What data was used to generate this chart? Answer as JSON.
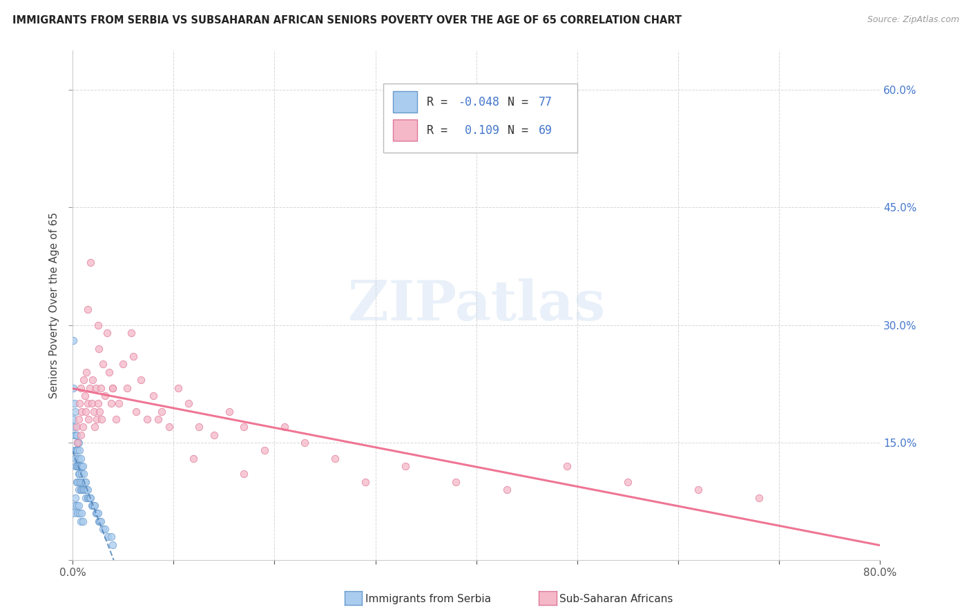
{
  "title": "IMMIGRANTS FROM SERBIA VS SUBSAHARAN AFRICAN SENIORS POVERTY OVER THE AGE OF 65 CORRELATION CHART",
  "source": "Source: ZipAtlas.com",
  "ylabel": "Seniors Poverty Over the Age of 65",
  "xlim": [
    0.0,
    0.8
  ],
  "ylim": [
    0.0,
    0.65
  ],
  "background_color": "#ffffff",
  "grid_color": "#cccccc",
  "watermark_text": "ZIPatlas",
  "legend_R1": "-0.048",
  "legend_N1": "77",
  "legend_R2": "0.109",
  "legend_N2": "69",
  "series1_color": "#aaccee",
  "series1_edge": "#6699cc",
  "series2_color": "#f5b8c8",
  "series2_edge": "#dd7799",
  "trendline1_color": "#5588bb",
  "trendline2_color": "#ee6688",
  "serbia_x": [
    0.001,
    0.001,
    0.001,
    0.002,
    0.002,
    0.002,
    0.002,
    0.003,
    0.003,
    0.003,
    0.003,
    0.003,
    0.004,
    0.004,
    0.004,
    0.004,
    0.005,
    0.005,
    0.005,
    0.005,
    0.005,
    0.006,
    0.006,
    0.006,
    0.006,
    0.006,
    0.007,
    0.007,
    0.007,
    0.007,
    0.008,
    0.008,
    0.008,
    0.008,
    0.009,
    0.009,
    0.009,
    0.01,
    0.01,
    0.01,
    0.011,
    0.011,
    0.012,
    0.012,
    0.013,
    0.013,
    0.014,
    0.015,
    0.015,
    0.016,
    0.017,
    0.018,
    0.019,
    0.02,
    0.021,
    0.022,
    0.023,
    0.024,
    0.025,
    0.026,
    0.027,
    0.028,
    0.03,
    0.032,
    0.035,
    0.038,
    0.04,
    0.001,
    0.002,
    0.003,
    0.004,
    0.005,
    0.006,
    0.007,
    0.008,
    0.009,
    0.01
  ],
  "serbia_y": [
    0.28,
    0.22,
    0.18,
    0.2,
    0.17,
    0.16,
    0.14,
    0.19,
    0.16,
    0.14,
    0.13,
    0.12,
    0.16,
    0.14,
    0.12,
    0.1,
    0.15,
    0.14,
    0.13,
    0.12,
    0.1,
    0.15,
    0.13,
    0.12,
    0.11,
    0.09,
    0.14,
    0.12,
    0.11,
    0.1,
    0.13,
    0.12,
    0.1,
    0.09,
    0.12,
    0.11,
    0.09,
    0.12,
    0.1,
    0.09,
    0.11,
    0.09,
    0.1,
    0.09,
    0.1,
    0.08,
    0.09,
    0.09,
    0.08,
    0.08,
    0.08,
    0.08,
    0.07,
    0.07,
    0.07,
    0.07,
    0.06,
    0.06,
    0.06,
    0.05,
    0.05,
    0.05,
    0.04,
    0.04,
    0.03,
    0.03,
    0.02,
    0.06,
    0.07,
    0.08,
    0.07,
    0.06,
    0.07,
    0.06,
    0.05,
    0.06,
    0.05
  ],
  "subsaharan_x": [
    0.004,
    0.005,
    0.006,
    0.007,
    0.008,
    0.009,
    0.01,
    0.011,
    0.012,
    0.013,
    0.014,
    0.015,
    0.016,
    0.017,
    0.018,
    0.019,
    0.02,
    0.021,
    0.022,
    0.023,
    0.024,
    0.025,
    0.026,
    0.027,
    0.028,
    0.029,
    0.03,
    0.032,
    0.034,
    0.036,
    0.038,
    0.04,
    0.043,
    0.046,
    0.05,
    0.054,
    0.058,
    0.063,
    0.068,
    0.074,
    0.08,
    0.088,
    0.096,
    0.105,
    0.115,
    0.125,
    0.14,
    0.155,
    0.17,
    0.19,
    0.21,
    0.23,
    0.26,
    0.29,
    0.33,
    0.38,
    0.43,
    0.49,
    0.55,
    0.62,
    0.68,
    0.008,
    0.015,
    0.025,
    0.04,
    0.06,
    0.085,
    0.12,
    0.17
  ],
  "subsaharan_y": [
    0.17,
    0.15,
    0.18,
    0.2,
    0.22,
    0.19,
    0.17,
    0.23,
    0.21,
    0.19,
    0.24,
    0.2,
    0.18,
    0.22,
    0.38,
    0.2,
    0.23,
    0.19,
    0.17,
    0.22,
    0.18,
    0.2,
    0.27,
    0.19,
    0.22,
    0.18,
    0.25,
    0.21,
    0.29,
    0.24,
    0.2,
    0.22,
    0.18,
    0.2,
    0.25,
    0.22,
    0.29,
    0.19,
    0.23,
    0.18,
    0.21,
    0.19,
    0.17,
    0.22,
    0.2,
    0.17,
    0.16,
    0.19,
    0.17,
    0.14,
    0.17,
    0.15,
    0.13,
    0.1,
    0.12,
    0.1,
    0.09,
    0.12,
    0.1,
    0.09,
    0.08,
    0.16,
    0.32,
    0.3,
    0.22,
    0.26,
    0.18,
    0.13,
    0.11
  ],
  "trendline1_start_x": 0.0,
  "trendline1_end_x": 0.8,
  "trendline2_start_x": 0.0,
  "trendline2_end_x": 0.8
}
